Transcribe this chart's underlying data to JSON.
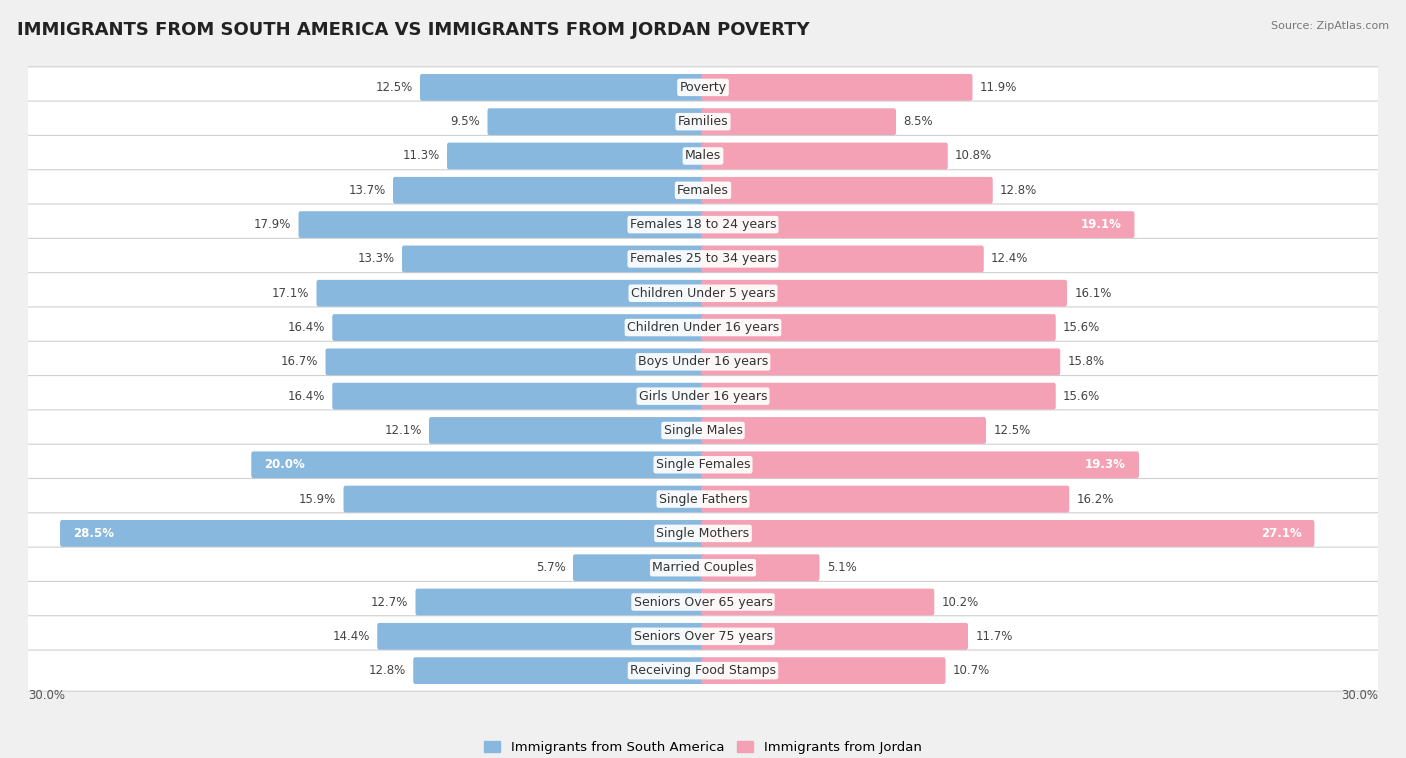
{
  "title": "IMMIGRANTS FROM SOUTH AMERICA VS IMMIGRANTS FROM JORDAN POVERTY",
  "source": "Source: ZipAtlas.com",
  "categories": [
    "Poverty",
    "Families",
    "Males",
    "Females",
    "Females 18 to 24 years",
    "Females 25 to 34 years",
    "Children Under 5 years",
    "Children Under 16 years",
    "Boys Under 16 years",
    "Girls Under 16 years",
    "Single Males",
    "Single Females",
    "Single Fathers",
    "Single Mothers",
    "Married Couples",
    "Seniors Over 65 years",
    "Seniors Over 75 years",
    "Receiving Food Stamps"
  ],
  "south_america": [
    12.5,
    9.5,
    11.3,
    13.7,
    17.9,
    13.3,
    17.1,
    16.4,
    16.7,
    16.4,
    12.1,
    20.0,
    15.9,
    28.5,
    5.7,
    12.7,
    14.4,
    12.8
  ],
  "jordan": [
    11.9,
    8.5,
    10.8,
    12.8,
    19.1,
    12.4,
    16.1,
    15.6,
    15.8,
    15.6,
    12.5,
    19.3,
    16.2,
    27.1,
    5.1,
    10.2,
    11.7,
    10.7
  ],
  "blue_color": "#89b8de",
  "pink_color": "#f4a0b5",
  "blue_label": "Immigrants from South America",
  "pink_label": "Immigrants from Jordan",
  "axis_max": 30.0,
  "bg_color": "#f0f0f0",
  "row_bg": "#ffffff",
  "title_fontsize": 13,
  "label_fontsize": 9,
  "value_fontsize": 8.5
}
